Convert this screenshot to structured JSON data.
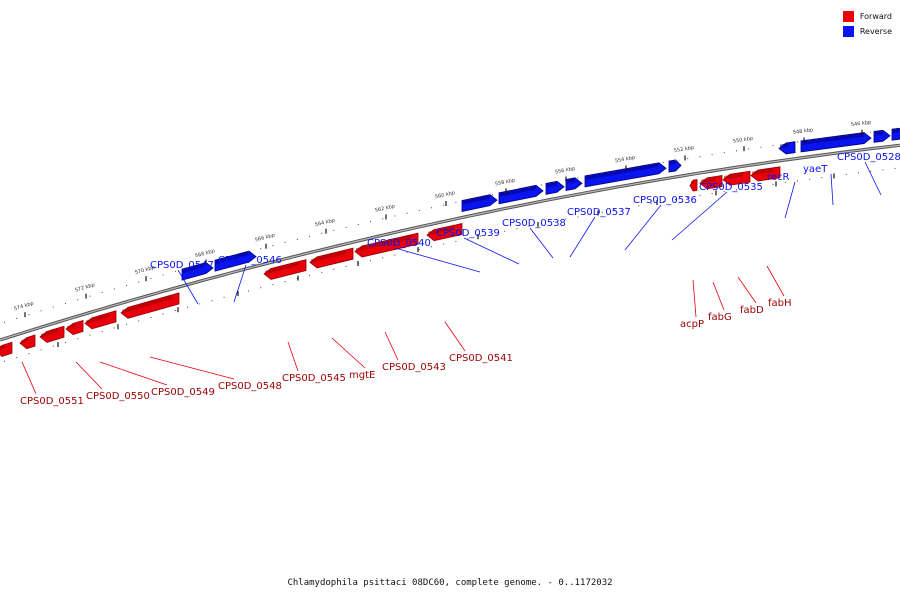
{
  "legend": {
    "items": [
      {
        "label": "Forward",
        "color": "#e8000b"
      },
      {
        "label": "Reverse",
        "color": "#0a14f0"
      }
    ]
  },
  "caption": "Chlamydophila psittaci 08DC60, complete genome. - 0..1172032",
  "colors": {
    "forward": "#e8000b",
    "forward_dark": "#9a0000",
    "reverse": "#0a14f0",
    "reverse_dark": "#00007a",
    "backbone": "#888888"
  },
  "ticks": [
    {
      "label": "574 kbp",
      "kbp": 574
    },
    {
      "label": "572 kbp",
      "kbp": 572
    },
    {
      "label": "570 kbp",
      "kbp": 570
    },
    {
      "label": "568 kbp",
      "kbp": 568
    },
    {
      "label": "566 kbp",
      "kbp": 566
    },
    {
      "label": "564 kbp",
      "kbp": 564
    },
    {
      "label": "562 kbp",
      "kbp": 562
    },
    {
      "label": "560 kbp",
      "kbp": 560
    },
    {
      "label": "558 kbp",
      "kbp": 558
    },
    {
      "label": "556 kbp",
      "kbp": 556
    },
    {
      "label": "554 kbp",
      "kbp": 554
    },
    {
      "label": "552 kbp",
      "kbp": 552
    },
    {
      "label": "550 kbp",
      "kbp": 550
    },
    {
      "label": "548 kbp",
      "kbp": 548
    },
    {
      "label": "546 kbp",
      "kbp": 546
    }
  ],
  "genes": {
    "reverse": [
      {
        "label": "CPS0D_0547"
      },
      {
        "label": "CPS0D_0546"
      },
      {
        "label": "CPS0D_0540"
      },
      {
        "label": "CPS0D_0539"
      },
      {
        "label": "CPS0D_0538"
      },
      {
        "label": "CPS0D_0537"
      },
      {
        "label": "CPS0D_0536"
      },
      {
        "label": "CPS0D_0535"
      },
      {
        "label": "recR"
      },
      {
        "label": "yaeT"
      },
      {
        "label": "CPS0D_0528"
      }
    ],
    "forward": [
      {
        "label": "CPS0D_0551"
      },
      {
        "label": "CPS0D_0550"
      },
      {
        "label": "CPS0D_0549"
      },
      {
        "label": "CPS0D_0548"
      },
      {
        "label": "CPS0D_0545"
      },
      {
        "label": "mgtE"
      },
      {
        "label": "CPS0D_0543"
      },
      {
        "label": "CPS0D_0541"
      },
      {
        "label": "acpP"
      },
      {
        "label": "fabG"
      },
      {
        "label": "fabD"
      },
      {
        "label": "fabH"
      }
    ]
  }
}
